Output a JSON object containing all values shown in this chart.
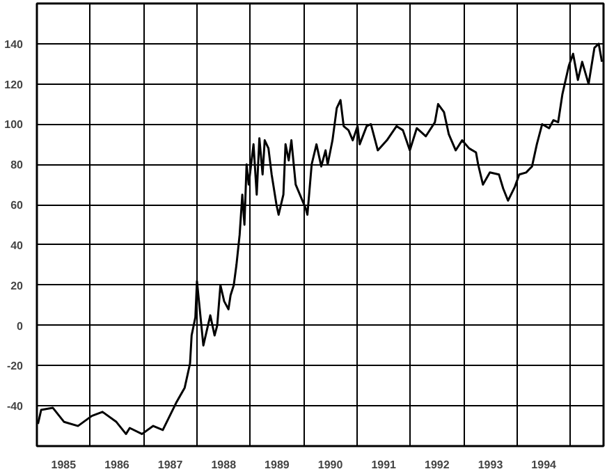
{
  "chart_data": {
    "type": "line",
    "color": "#000000",
    "x": [
      1985.02,
      1985.08,
      1985.3,
      1985.51,
      1985.77,
      1986.03,
      1986.23,
      1986.49,
      1986.67,
      1986.74,
      1986.97,
      1987.18,
      1987.36,
      1987.49,
      1987.62,
      1987.77,
      1987.87,
      1987.9,
      1987.97,
      1988.0,
      1988.12,
      1988.25,
      1988.33,
      1988.38,
      1988.44,
      1988.51,
      1988.59,
      1988.63,
      1988.69,
      1988.74,
      1988.8,
      1988.85,
      1988.89,
      1988.93,
      1988.97,
      1989.06,
      1989.12,
      1989.17,
      1989.23,
      1989.27,
      1989.34,
      1989.4,
      1989.49,
      1989.53,
      1989.62,
      1989.66,
      1989.72,
      1989.77,
      1989.85,
      1990.04,
      1990.07,
      1990.15,
      1990.24,
      1990.33,
      1990.41,
      1990.45,
      1990.54,
      1990.62,
      1990.69,
      1990.75,
      1990.84,
      1990.92,
      1991.01,
      1991.05,
      1991.18,
      1991.26,
      1991.39,
      1991.56,
      1991.74,
      1991.86,
      1991.99,
      1992.12,
      1992.29,
      1992.46,
      1992.52,
      1992.63,
      1992.72,
      1992.85,
      1992.97,
      1993.1,
      1993.23,
      1993.27,
      1993.36,
      1993.49,
      1993.66,
      1993.74,
      1993.83,
      1993.96,
      1994.04,
      1994.17,
      1994.28,
      1994.37,
      1994.47,
      1994.6,
      1994.68,
      1994.77,
      1994.85,
      1994.97,
      1995.05,
      1995.14,
      1995.22,
      1995.34,
      1995.45,
      1995.53,
      1995.59
    ],
    "values": [
      -49,
      -42,
      -41,
      -48,
      -50,
      -45,
      -43,
      -48,
      -54,
      -51,
      -54,
      -50,
      -52,
      -45,
      -38,
      -31,
      -19,
      -5,
      4,
      22,
      -10,
      5,
      -5,
      0,
      20,
      12,
      8,
      15,
      20,
      30,
      45,
      65,
      50,
      80,
      70,
      90,
      65,
      93,
      75,
      92,
      88,
      75,
      60,
      55,
      65,
      90,
      82,
      92,
      70,
      58,
      55,
      80,
      90,
      79,
      87,
      80,
      92,
      108,
      112,
      99,
      97,
      92,
      99,
      90,
      99,
      100,
      87,
      92,
      99,
      97,
      87,
      98,
      94,
      101,
      110,
      106,
      95,
      87,
      92,
      88,
      86,
      80,
      70,
      76,
      75,
      68,
      62,
      69,
      75,
      76,
      79,
      90,
      100,
      98,
      102,
      101,
      115,
      129,
      135,
      122,
      131,
      120,
      138,
      140,
      131
    ],
    "xlim": [
      1985,
      1995.62
    ],
    "ylim": [
      -60,
      160
    ],
    "xticks": [
      {
        "value": 1985,
        "label": null
      },
      {
        "value": 1985.5,
        "label": "1985"
      },
      {
        "value": 1986,
        "label": null
      },
      {
        "value": 1986.5,
        "label": "1986"
      },
      {
        "value": 1987,
        "label": null
      },
      {
        "value": 1987.5,
        "label": "1987"
      },
      {
        "value": 1988,
        "label": null
      },
      {
        "value": 1988.5,
        "label": "1988"
      },
      {
        "value": 1989,
        "label": null
      },
      {
        "value": 1989.5,
        "label": "1989"
      },
      {
        "value": 1990,
        "label": null
      },
      {
        "value": 1990.5,
        "label": "1990"
      },
      {
        "value": 1991,
        "label": null
      },
      {
        "value": 1991.5,
        "label": "1991"
      },
      {
        "value": 1992,
        "label": null
      },
      {
        "value": 1992.5,
        "label": "1992"
      },
      {
        "value": 1993,
        "label": null
      },
      {
        "value": 1993.5,
        "label": "1993"
      },
      {
        "value": 1994,
        "label": null
      },
      {
        "value": 1994.5,
        "label": "1994"
      },
      {
        "value": 1995,
        "label": null
      }
    ],
    "yticks": [
      -40,
      -20,
      0,
      20,
      40,
      60,
      80,
      100,
      120,
      140
    ],
    "grid": true,
    "line_style": "solid"
  }
}
